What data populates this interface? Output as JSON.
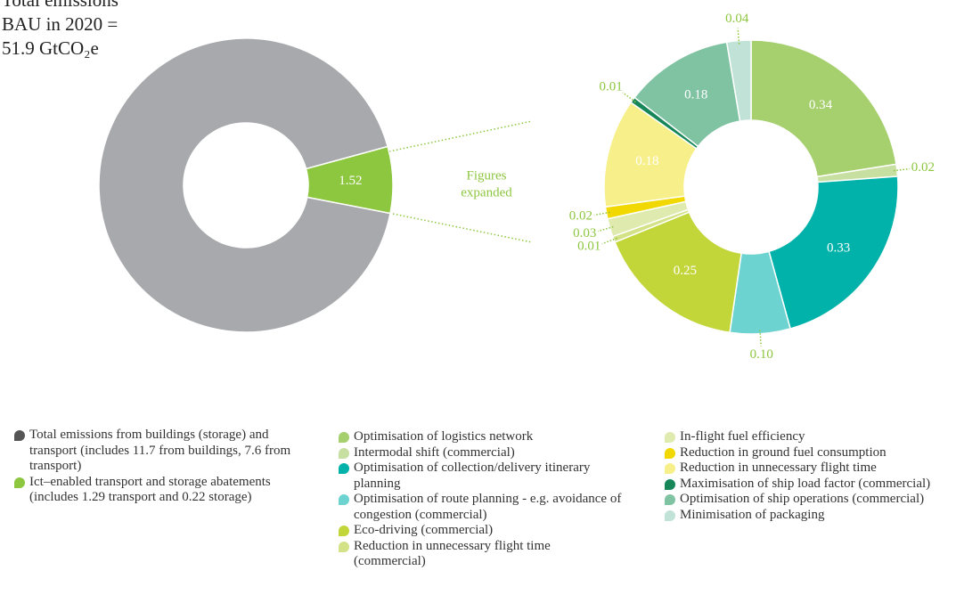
{
  "chart_data": [
    {
      "type": "donut",
      "title": [
        "Total emissions",
        "BAU in 2020 =",
        "51.9 GtCO₂e"
      ],
      "categories": [
        "Total emissions from buildings (storage) and transport (includes 11.7 from buildings, 7.6 from transport)",
        "Ict–enabled transport and storage abatements (includes 1.29 transport and 0.22 storage)"
      ],
      "values": [
        19.3,
        1.52
      ],
      "value_labels": [
        null,
        "1.52"
      ],
      "colors": [
        "#a7a9ac",
        "#8dc63f"
      ],
      "legend_colors": [
        "#555555",
        "#8dc63f"
      ]
    },
    {
      "type": "donut",
      "annotation": [
        "Figures",
        "expanded"
      ],
      "categories": [
        "Optimisation of logistics network",
        "Intermodal shift (commercial)",
        "Optimisation of collection/delivery itinerary planning",
        "Optimisation of route planning - e.g. avoidance of congestion (commercial)",
        "Eco-driving (commercial)",
        "Reduction in unnecessary flight time (commercial)",
        "In-flight fuel efficiency",
        "Reduction in ground fuel consumption",
        "Reduction in unnecessary flight time",
        "Maximisation of ship load factor (commercial)",
        "Optimisation of ship operations (commercial)",
        "Minimisation of packaging"
      ],
      "values": [
        0.34,
        0.02,
        0.33,
        0.1,
        0.25,
        0.01,
        0.03,
        0.02,
        0.18,
        0.01,
        0.18,
        0.04
      ],
      "value_labels": [
        "0.34",
        "0.02",
        "0.33",
        "0.10",
        "0.25",
        "0.01",
        "0.03",
        "0.02",
        "0.18",
        "0.01",
        "0.18",
        "0.04"
      ],
      "colors": [
        "#a6cf6e",
        "#c8dfa2",
        "#00b2a9",
        "#6dd3d0",
        "#c2d63a",
        "#d3e286",
        "#dfeaaf",
        "#f0d800",
        "#f7ef8a",
        "#17875a",
        "#80c3a3",
        "#c0e2d7"
      ]
    }
  ]
}
